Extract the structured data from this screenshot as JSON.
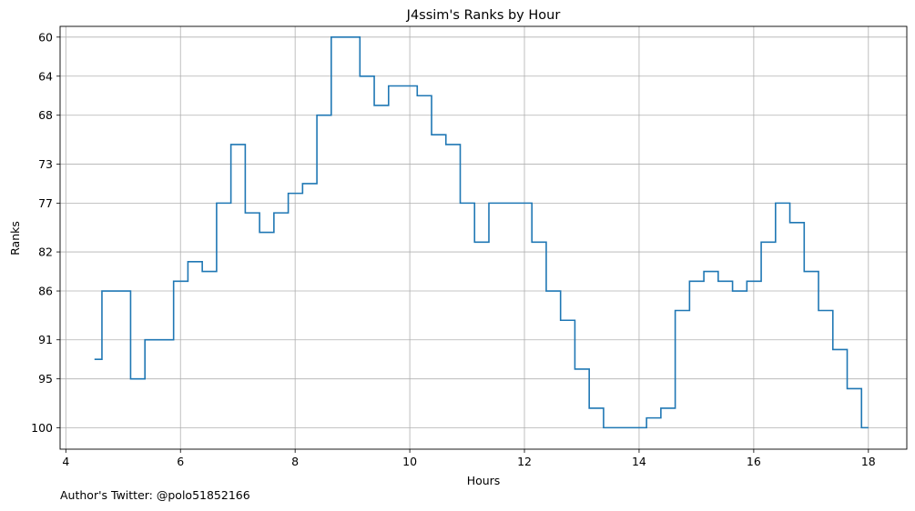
{
  "chart_data": {
    "type": "line",
    "step": "post",
    "title": "J4ssim's Ranks by Hour",
    "xlabel": "Hours",
    "ylabel": "Ranks",
    "y_inverted": true,
    "xlim": [
      3.9,
      18.67
    ],
    "ylim": [
      102.2,
      58.9
    ],
    "xticks": [
      4,
      6,
      8,
      10,
      12,
      14,
      16,
      18
    ],
    "yticks": [
      60,
      64,
      68,
      73,
      77,
      82,
      86,
      91,
      95,
      100
    ],
    "grid": true,
    "legend": "none",
    "line_color": "#1f77b4",
    "series": [
      {
        "x": [
          4.5,
          4.63,
          4.88,
          5.13,
          5.38,
          5.63,
          5.88,
          6.13,
          6.38,
          6.63,
          6.88,
          7.13,
          7.38,
          7.63,
          7.88,
          8.13,
          8.38,
          8.63,
          8.88,
          9.13,
          9.38,
          9.63,
          9.88,
          10.13,
          10.38,
          10.63,
          10.88,
          11.13,
          11.38,
          11.63,
          11.88,
          12.13,
          12.38,
          12.63,
          12.88,
          13.13,
          13.38,
          13.63,
          13.88,
          14.13,
          14.38,
          14.63,
          14.88,
          15.13,
          15.38,
          15.63,
          15.88,
          16.13,
          16.38,
          16.63,
          16.88,
          17.13,
          17.38,
          17.63,
          17.88,
          18.0
        ],
        "y": [
          93,
          86,
          86,
          95,
          91,
          91,
          85,
          83,
          84,
          77,
          71,
          78,
          80,
          78,
          76,
          75,
          68,
          60,
          60,
          64,
          67,
          65,
          65,
          66,
          70,
          71,
          77,
          81,
          77,
          77,
          77,
          81,
          86,
          89,
          94,
          98,
          100,
          100,
          100,
          99,
          98,
          88,
          85,
          84,
          85,
          86,
          85,
          81,
          77,
          79,
          84,
          88,
          92,
          96,
          100,
          100
        ]
      }
    ]
  },
  "footer": {
    "author": "Author's Twitter: @polo51852166"
  }
}
